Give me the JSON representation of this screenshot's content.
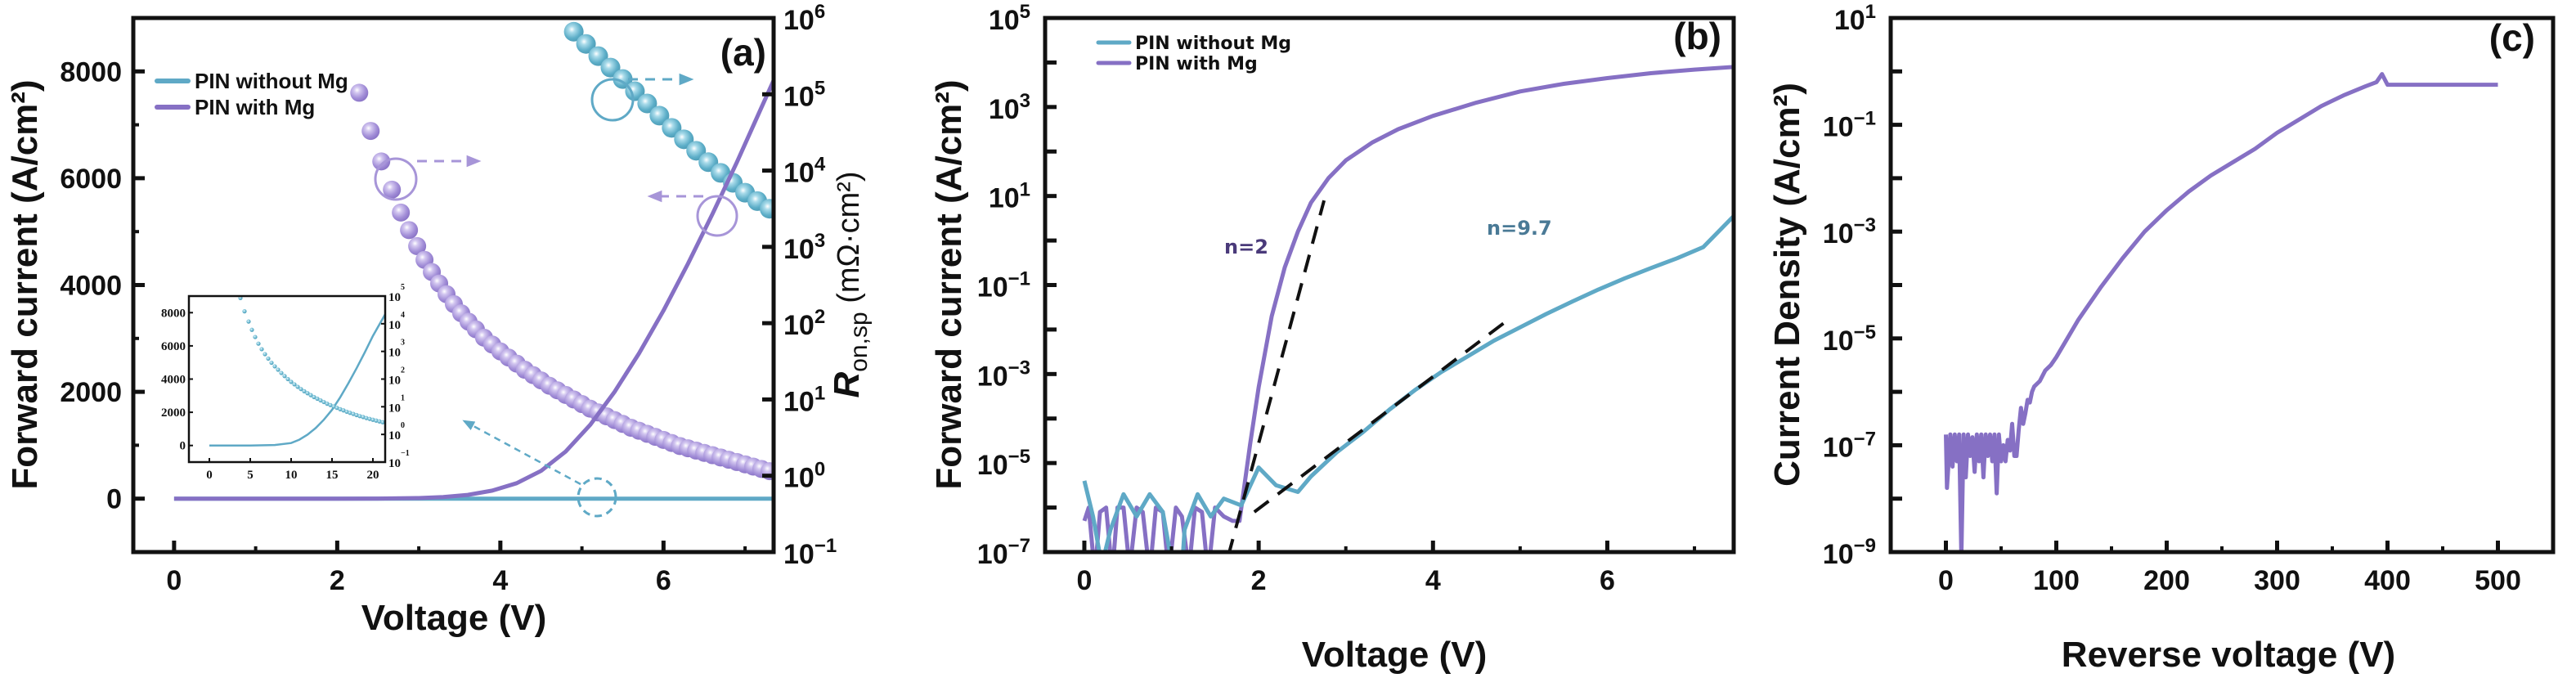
{
  "colors": {
    "without_mg": "#5fa9c6",
    "with_mg": "#8670c4",
    "with_mg_light": "#a795d8",
    "axis": "#111111",
    "fit_line": "#111111",
    "annot_n2": "#4a3a7a",
    "annot_n97": "#4a7a96"
  },
  "chart_data": [
    {
      "id": "a",
      "type": "line",
      "panel_label": "(a)",
      "xlabel": "Voltage (V)",
      "ylabel": "Forward current (A/cm²)",
      "y2label_main": "R",
      "y2label_sub": "on,sp",
      "y2label_unit": " (mΩ·cm²)",
      "xlim": [
        -0.5,
        7.35
      ],
      "ylim": [
        -1000,
        9000
      ],
      "y2lim_log": [
        -1,
        6
      ],
      "xticks": [
        0,
        2,
        4,
        6
      ],
      "xtick_labels": [
        "0",
        "2",
        "4",
        "6"
      ],
      "yticks": [
        0,
        2000,
        4000,
        6000,
        8000
      ],
      "ytick_labels": [
        "0",
        "2000",
        "4000",
        "6000",
        "8000"
      ],
      "y2ticks": [
        -1,
        0,
        1,
        2,
        3,
        4,
        5,
        6
      ],
      "y2tick_labels": [
        [
          "10",
          "−1"
        ],
        [
          "10",
          "0"
        ],
        [
          "10",
          "1"
        ],
        [
          "10",
          "2"
        ],
        [
          "10",
          "3"
        ],
        [
          "10",
          "4"
        ],
        [
          "10",
          "5"
        ],
        [
          "10",
          "6"
        ]
      ],
      "legend": [
        {
          "name": "PIN without Mg",
          "color_key": "without_mg"
        },
        {
          "name": "PIN with Mg",
          "color_key": "with_mg"
        }
      ],
      "legend_position": "top-left",
      "series": [
        {
          "name": "PIN without Mg (J-V)",
          "axis": "left",
          "style": "line",
          "x": [
            0,
            1,
            2,
            3,
            4,
            5,
            6,
            7.35
          ],
          "y": [
            0,
            0,
            0,
            0,
            0,
            0,
            0,
            0
          ]
        },
        {
          "name": "PIN with Mg (J-V)",
          "axis": "left",
          "style": "line",
          "x": [
            0,
            1,
            2,
            2.5,
            3,
            3.3,
            3.6,
            3.9,
            4.2,
            4.5,
            4.8,
            5.1,
            5.4,
            5.7,
            6.0,
            6.3,
            6.6,
            6.9,
            7.2,
            7.35
          ],
          "y": [
            0,
            0,
            0,
            2,
            10,
            30,
            70,
            150,
            290,
            520,
            880,
            1380,
            2000,
            2720,
            3520,
            4400,
            5330,
            6300,
            7320,
            7830
          ]
        },
        {
          "name": "PIN with Mg (Ron,sp)",
          "axis": "right",
          "style": "spheres",
          "x": [
            2.27,
            2.41,
            2.54,
            2.67,
            2.78,
            2.88,
            2.98,
            3.07,
            3.16,
            3.25,
            3.34,
            3.43,
            3.52,
            3.61,
            3.7,
            3.8,
            3.9,
            4.0,
            4.1,
            4.2,
            4.3,
            4.4,
            4.5,
            4.6,
            4.7,
            4.8,
            4.9,
            5.0,
            5.1,
            5.2,
            5.3,
            5.4,
            5.5,
            5.6,
            5.7,
            5.8,
            5.9,
            6.0,
            6.1,
            6.2,
            6.3,
            6.4,
            6.5,
            6.6,
            6.7,
            6.8,
            6.9,
            7.0,
            7.1,
            7.2,
            7.3
          ],
          "log10y": [
            5.02,
            4.52,
            4.12,
            3.75,
            3.45,
            3.22,
            3.01,
            2.83,
            2.67,
            2.52,
            2.38,
            2.25,
            2.13,
            2.02,
            1.92,
            1.81,
            1.72,
            1.63,
            1.55,
            1.47,
            1.39,
            1.32,
            1.25,
            1.18,
            1.12,
            1.06,
            1.0,
            0.94,
            0.88,
            0.83,
            0.78,
            0.73,
            0.68,
            0.63,
            0.59,
            0.55,
            0.51,
            0.47,
            0.43,
            0.39,
            0.36,
            0.33,
            0.3,
            0.27,
            0.24,
            0.21,
            0.18,
            0.15,
            0.12,
            0.09,
            0.06
          ]
        },
        {
          "name": "PIN without Mg (Ron,sp)",
          "axis": "right",
          "style": "spheres",
          "x": [
            4.9,
            5.05,
            5.2,
            5.35,
            5.5,
            5.65,
            5.8,
            5.95,
            6.1,
            6.25,
            6.4,
            6.55,
            6.7,
            6.85,
            7.0,
            7.15,
            7.3
          ],
          "log10y": [
            5.82,
            5.66,
            5.5,
            5.35,
            5.2,
            5.04,
            4.88,
            4.72,
            4.56,
            4.41,
            4.26,
            4.11,
            3.97,
            3.84,
            3.71,
            3.6,
            3.5
          ]
        }
      ],
      "inset": {
        "xlim": [
          -2.5,
          21.5
        ],
        "ylim": [
          -1000,
          9000
        ],
        "y2lim_log": [
          -1,
          5
        ],
        "xticks": [
          0,
          5,
          10,
          15,
          20
        ],
        "xtick_labels": [
          "0",
          "5",
          "10",
          "15",
          "20"
        ],
        "yticks": [
          0,
          2000,
          4000,
          6000,
          8000
        ],
        "ytick_labels": [
          "0",
          "2000",
          "4000",
          "6000",
          "8000"
        ],
        "y2ticks": [
          -1,
          0,
          1,
          2,
          3,
          4,
          5
        ],
        "y2tick_labels": [
          [
            "10",
            "−1"
          ],
          [
            "10",
            "0"
          ],
          [
            "10",
            "1"
          ],
          [
            "10",
            "2"
          ],
          [
            "10",
            "3"
          ],
          [
            "10",
            "4"
          ],
          [
            "10",
            "5"
          ]
        ],
        "series": [
          {
            "name": "PIN without Mg (J-V, inset)",
            "style": "line",
            "x": [
              0,
              5,
              8,
              10,
              11,
              12,
              13,
              14,
              15,
              16,
              17,
              18,
              19,
              20,
              21.5
            ],
            "y": [
              0,
              0,
              30,
              150,
              350,
              650,
              1050,
              1550,
              2150,
              2900,
              3750,
              4650,
              5600,
              6600,
              7900
            ]
          },
          {
            "name": "PIN without Mg (Ron,sp, inset)",
            "style": "dots",
            "x": [
              3.8,
              4.3,
              4.8,
              5.2,
              5.6,
              6.0,
              6.4,
              6.8,
              7.2,
              7.6,
              8.0,
              8.4,
              8.8,
              9.2,
              9.6,
              10.0,
              10.4,
              10.8,
              11.2,
              11.6,
              12.0,
              12.4,
              12.8,
              13.2,
              13.6,
              14.0,
              14.4,
              14.8,
              15.2,
              15.6,
              16.0,
              16.4,
              16.8,
              17.2,
              17.6,
              18.0,
              18.4,
              18.8,
              19.2,
              19.6,
              20.0,
              20.4,
              20.8,
              21.2
            ],
            "log10y": [
              4.93,
              4.45,
              4.08,
              3.78,
              3.52,
              3.28,
              3.08,
              2.9,
              2.74,
              2.59,
              2.46,
              2.34,
              2.22,
              2.11,
              2.0,
              1.9,
              1.81,
              1.72,
              1.64,
              1.56,
              1.49,
              1.42,
              1.35,
              1.29,
              1.23,
              1.17,
              1.11,
              1.06,
              1.01,
              0.96,
              0.91,
              0.87,
              0.82,
              0.78,
              0.74,
              0.7,
              0.66,
              0.63,
              0.59,
              0.56,
              0.53,
              0.5,
              0.47,
              0.44
            ]
          }
        ]
      }
    },
    {
      "id": "b",
      "type": "line",
      "panel_label": "(b)",
      "xlabel": "Voltage (V)",
      "ylabel": "Forward current (A/cm²)",
      "xlim": [
        -0.45,
        7.45
      ],
      "ylim_log": [
        -7,
        5
      ],
      "xticks": [
        0,
        2,
        4,
        6
      ],
      "xtick_labels": [
        "0",
        "2",
        "4",
        "6"
      ],
      "yticks_log": [
        -7,
        -5,
        -3,
        -1,
        1,
        3,
        5
      ],
      "ytick_labels": [
        [
          "10",
          "−7"
        ],
        [
          "10",
          "−5"
        ],
        [
          "10",
          "−3"
        ],
        [
          "10",
          "−1"
        ],
        [
          "10",
          "1"
        ],
        [
          "10",
          "3"
        ],
        [
          "10",
          "5"
        ]
      ],
      "legend": [
        {
          "name": "PIN without Mg",
          "color_key": "without_mg"
        },
        {
          "name": "PIN with Mg",
          "color_key": "with_mg"
        }
      ],
      "legend_position": "top-left",
      "annotations": [
        {
          "text": "n=2",
          "x": 2.05,
          "log10y": 0.0,
          "color_key": "annot_n2"
        },
        {
          "text": "n=9.7",
          "x": 4.35,
          "log10y": -2.7,
          "color_key": "annot_n97"
        }
      ],
      "fit_lines": [
        {
          "name": "n=2 fit",
          "x": [
            1.65,
            2.75
          ],
          "log10y": [
            -7.1,
            0.9
          ]
        },
        {
          "name": "n=9.7 fit",
          "x": [
            1.95,
            4.85
          ],
          "log10y": [
            -6.1,
            -1.8
          ]
        }
      ],
      "series": [
        {
          "name": "PIN without Mg",
          "x": [
            0,
            0.1,
            0.2,
            0.3,
            0.45,
            0.6,
            0.75,
            0.9,
            1.0,
            1.1,
            1.15,
            1.3,
            1.45,
            1.6,
            1.8,
            2.0,
            2.2,
            2.45,
            2.6,
            2.9,
            3.2,
            3.5,
            3.8,
            4.1,
            4.4,
            4.7,
            5.0,
            5.3,
            5.6,
            5.9,
            6.2,
            6.5,
            6.8,
            7.1,
            7.45
          ],
          "log10y": [
            -5.4,
            -6.2,
            -7.3,
            -6.5,
            -5.7,
            -6.2,
            -5.7,
            -6.1,
            -7.2,
            -8.0,
            -6.5,
            -5.7,
            -6.2,
            -5.8,
            -5.95,
            -5.1,
            -5.5,
            -5.65,
            -5.3,
            -4.75,
            -4.3,
            -3.8,
            -3.35,
            -2.95,
            -2.6,
            -2.25,
            -1.95,
            -1.65,
            -1.37,
            -1.1,
            -0.85,
            -0.62,
            -0.4,
            -0.15,
            0.55
          ]
        },
        {
          "name": "PIN with Mg",
          "x": [
            0,
            0.05,
            0.12,
            0.18,
            0.25,
            0.32,
            0.38,
            0.45,
            0.52,
            0.6,
            0.67,
            0.75,
            0.82,
            0.9,
            0.97,
            1.05,
            1.12,
            1.2,
            1.27,
            1.35,
            1.42,
            1.5,
            1.6,
            1.7,
            1.78,
            1.9,
            2.0,
            2.15,
            2.3,
            2.45,
            2.6,
            2.8,
            3.0,
            3.3,
            3.6,
            4.0,
            4.5,
            5.0,
            5.5,
            6.0,
            6.5,
            7.0,
            7.45
          ],
          "log10y": [
            -6.3,
            -6.0,
            -7.5,
            -6.1,
            -6.0,
            -7.5,
            -6.0,
            -6.0,
            -7.4,
            -6.0,
            -6.1,
            -7.5,
            -6.0,
            -6.1,
            -7.5,
            -6.0,
            -6.2,
            -7.4,
            -6.0,
            -6.1,
            -7.5,
            -6.0,
            -6.2,
            -6.3,
            -6.3,
            -4.6,
            -3.3,
            -1.7,
            -0.6,
            0.2,
            0.85,
            1.4,
            1.8,
            2.2,
            2.5,
            2.8,
            3.1,
            3.35,
            3.52,
            3.65,
            3.76,
            3.84,
            3.9
          ]
        }
      ]
    },
    {
      "id": "c",
      "type": "line",
      "panel_label": "(c)",
      "xlabel": "Reverse voltage (V)",
      "ylabel": "Current Density (A/cm²)",
      "xlim": [
        -50,
        550
      ],
      "ylim_log": [
        -9,
        1
      ],
      "xticks": [
        0,
        100,
        200,
        300,
        400,
        500
      ],
      "xtick_labels": [
        "0",
        "100",
        "200",
        "300",
        "400",
        "500"
      ],
      "yticks_log": [
        -9,
        -7,
        -5,
        -3,
        -1,
        1
      ],
      "ytick_labels": [
        [
          "10",
          "−9"
        ],
        [
          "10",
          "−7"
        ],
        [
          "10",
          "−5"
        ],
        [
          "10",
          "−3"
        ],
        [
          "10",
          "−1"
        ],
        [
          "10",
          "1"
        ]
      ],
      "series": [
        {
          "name": "PIN with Mg",
          "x": [
            0,
            1,
            4,
            6,
            8,
            10,
            12,
            14,
            16,
            18,
            20,
            22,
            24,
            26,
            28,
            30,
            32,
            34,
            36,
            38,
            40,
            42,
            44,
            46,
            48,
            50,
            52,
            54,
            56,
            58,
            60,
            62,
            64,
            66,
            68,
            70,
            72,
            74,
            76,
            78,
            80,
            85,
            90,
            95,
            100,
            110,
            120,
            140,
            160,
            180,
            200,
            220,
            240,
            260,
            280,
            300,
            320,
            340,
            360,
            380,
            390,
            395,
            400,
            420,
            450,
            480,
            500
          ],
          "log10y": [
            -6.8,
            -7.8,
            -6.8,
            -7.4,
            -6.8,
            -7.3,
            -6.8,
            -9.1,
            -6.8,
            -7.6,
            -6.8,
            -7.2,
            -6.85,
            -7.5,
            -6.8,
            -7.3,
            -6.8,
            -7.6,
            -6.8,
            -7.2,
            -6.8,
            -7.3,
            -6.8,
            -7.9,
            -6.8,
            -7.3,
            -7.0,
            -7.3,
            -6.9,
            -7.1,
            -6.6,
            -7.2,
            -7.2,
            -6.7,
            -6.3,
            -6.6,
            -6.4,
            -6.15,
            -6.2,
            -6.0,
            -5.9,
            -5.8,
            -5.6,
            -5.5,
            -5.35,
            -5.0,
            -4.65,
            -4.05,
            -3.5,
            -3.0,
            -2.6,
            -2.25,
            -1.95,
            -1.7,
            -1.45,
            -1.15,
            -0.9,
            -0.65,
            -0.45,
            -0.28,
            -0.2,
            -0.05,
            -0.25,
            -0.25,
            -0.25,
            -0.25,
            -0.25
          ]
        }
      ]
    }
  ]
}
